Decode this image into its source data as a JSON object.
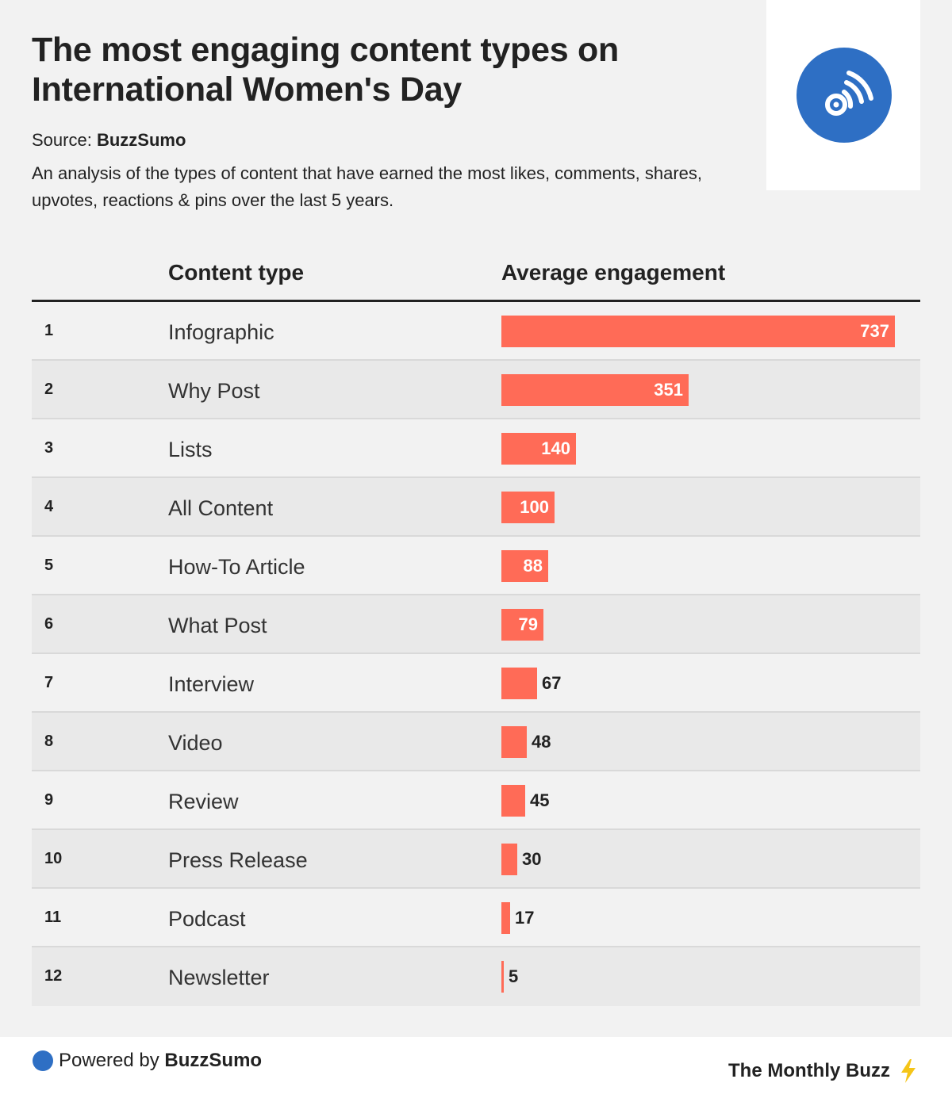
{
  "header": {
    "title": "The most engaging content types on International Women's Day",
    "source_label": "Source:",
    "source_brand": "BuzzSumo",
    "description": "An analysis of the types of content that have earned the most likes, comments, shares, upvotes, reactions & pins over the last 5 years."
  },
  "logo": {
    "icon": "rss-icon",
    "color": "#2e6fc4"
  },
  "columns": {
    "type": "Content type",
    "engagement": "Average engagement"
  },
  "chart_data": {
    "type": "bar",
    "orientation": "horizontal",
    "categories": [
      "Infographic",
      "Why Post",
      "Lists",
      "All Content",
      "How-To Article",
      "What Post",
      "Interview",
      "Video",
      "Review",
      "Press Release",
      "Podcast",
      "Newsletter"
    ],
    "ranks": [
      "1",
      "2",
      "3",
      "4",
      "5",
      "6",
      "7",
      "8",
      "9",
      "10",
      "11",
      "12"
    ],
    "values": [
      737,
      351,
      140,
      100,
      88,
      79,
      67,
      48,
      45,
      30,
      17,
      5
    ],
    "bar_color": "#ff6b57"
  },
  "footer": {
    "powered_label": "Powered by",
    "powered_brand": "BuzzSumo",
    "newsletter": "The Monthly Buzz",
    "bolt_icon": "lightning-icon",
    "bolt_color": "#f5c518"
  }
}
